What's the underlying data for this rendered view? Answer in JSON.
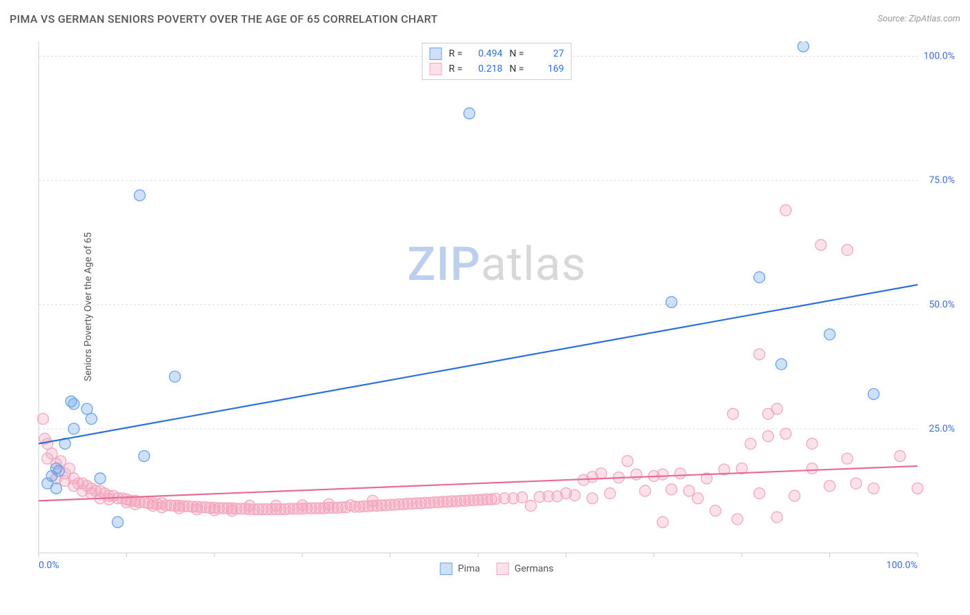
{
  "header": {
    "title": "PIMA VS GERMAN SENIORS POVERTY OVER THE AGE OF 65 CORRELATION CHART",
    "source_label": "Source: ZipAtlas.com"
  },
  "watermark": {
    "prefix": "ZIP",
    "suffix": "atlas"
  },
  "chart": {
    "type": "scatter",
    "y_axis_label": "Seniors Poverty Over the Age of 65",
    "xlim": [
      0,
      100
    ],
    "ylim": [
      0,
      103
    ],
    "x_ticks_minor_step": 10,
    "x_tick_labels": [
      {
        "pos": 0,
        "label": "0.0%"
      },
      {
        "pos": 100,
        "label": "100.0%"
      }
    ],
    "y_gridlines": [
      25,
      50,
      75,
      100
    ],
    "y_tick_labels": [
      {
        "pos": 25,
        "label": "25.0%"
      },
      {
        "pos": 50,
        "label": "50.0%"
      },
      {
        "pos": 75,
        "label": "75.0%"
      },
      {
        "pos": 100,
        "label": "100.0%"
      }
    ],
    "background_color": "#ffffff",
    "grid_color": "#dddddd",
    "axis_color": "#cccccc",
    "tick_label_color": "#3b6fd6",
    "axis_label_color": "#555555",
    "marker_radius": 8,
    "marker_fill_opacity": 0.32,
    "marker_stroke_width": 1.3,
    "trendline_width": 2.2,
    "series": [
      {
        "name": "Pima",
        "color": "#6aa3e8",
        "trendline_color": "#2a6fe0",
        "R": "0.494",
        "N": "27",
        "trendline": {
          "x1": 0,
          "y1": 22,
          "x2": 100,
          "y2": 54
        },
        "points": [
          [
            1,
            14
          ],
          [
            1.5,
            15.5
          ],
          [
            2,
            13
          ],
          [
            2,
            17
          ],
          [
            2.3,
            16.5
          ],
          [
            3,
            22
          ],
          [
            3.7,
            30.5
          ],
          [
            4,
            30
          ],
          [
            4,
            25
          ],
          [
            5.5,
            29
          ],
          [
            6,
            27
          ],
          [
            7,
            15
          ],
          [
            9,
            6.2
          ],
          [
            11.5,
            72
          ],
          [
            12,
            19.5
          ],
          [
            15.5,
            35.5
          ],
          [
            49,
            88.5
          ],
          [
            72,
            50.5
          ],
          [
            82,
            55.5
          ],
          [
            84.5,
            38
          ],
          [
            87,
            102
          ],
          [
            90,
            44
          ],
          [
            95,
            32
          ]
        ]
      },
      {
        "name": "Germans",
        "color": "#f4a6bd",
        "trendline_color": "#e86b91",
        "R": "0.218",
        "N": "169",
        "trendline": {
          "x1": 0,
          "y1": 10.5,
          "x2": 100,
          "y2": 17.5
        },
        "points": [
          [
            0.5,
            27
          ],
          [
            0.7,
            23
          ],
          [
            1,
            22
          ],
          [
            1,
            19
          ],
          [
            1.5,
            20
          ],
          [
            2,
            18
          ],
          [
            2,
            15
          ],
          [
            2.5,
            18.5
          ],
          [
            3,
            16
          ],
          [
            3,
            14.5
          ],
          [
            3.5,
            17
          ],
          [
            4,
            15
          ],
          [
            4,
            13.5
          ],
          [
            4.5,
            14
          ],
          [
            5,
            14
          ],
          [
            5,
            12.5
          ],
          [
            5.5,
            13.5
          ],
          [
            6,
            13
          ],
          [
            6,
            12
          ],
          [
            6.5,
            12.5
          ],
          [
            7,
            12.5
          ],
          [
            7,
            11
          ],
          [
            7.5,
            12
          ],
          [
            8,
            11.5
          ],
          [
            8,
            10.8
          ],
          [
            8.5,
            11.5
          ],
          [
            9,
            11
          ],
          [
            9.5,
            11
          ],
          [
            10,
            10.8
          ],
          [
            10,
            10.2
          ],
          [
            10.5,
            10.5
          ],
          [
            11,
            10.5
          ],
          [
            11,
            9.8
          ],
          [
            11.5,
            10.2
          ],
          [
            12,
            10.2
          ],
          [
            12.5,
            10
          ],
          [
            13,
            10
          ],
          [
            13,
            9.5
          ],
          [
            13.5,
            9.8
          ],
          [
            14,
            10
          ],
          [
            14,
            9.2
          ],
          [
            14.5,
            9.6
          ],
          [
            15,
            9.6
          ],
          [
            15.5,
            9.5
          ],
          [
            16,
            9.5
          ],
          [
            16,
            9
          ],
          [
            16.5,
            9.4
          ],
          [
            17,
            9.4
          ],
          [
            17.5,
            9.3
          ],
          [
            18,
            9.3
          ],
          [
            18,
            8.8
          ],
          [
            18.5,
            9.2
          ],
          [
            19,
            9.2
          ],
          [
            19.5,
            9.1
          ],
          [
            20,
            9.1
          ],
          [
            20,
            8.6
          ],
          [
            20.5,
            9
          ],
          [
            21,
            9
          ],
          [
            21.5,
            9
          ],
          [
            22,
            9
          ],
          [
            22,
            8.5
          ],
          [
            22.5,
            8.9
          ],
          [
            23,
            8.9
          ],
          [
            23.5,
            8.9
          ],
          [
            24,
            8.8
          ],
          [
            24,
            9.5
          ],
          [
            24.5,
            8.8
          ],
          [
            25,
            8.8
          ],
          [
            25.5,
            8.8
          ],
          [
            26,
            8.8
          ],
          [
            26.5,
            8.8
          ],
          [
            27,
            8.8
          ],
          [
            27,
            9.5
          ],
          [
            27.5,
            8.8
          ],
          [
            28,
            8.8
          ],
          [
            28.5,
            8.9
          ],
          [
            29,
            8.9
          ],
          [
            29.5,
            8.9
          ],
          [
            30,
            8.9
          ],
          [
            30,
            9.6
          ],
          [
            30.5,
            9
          ],
          [
            31,
            9
          ],
          [
            31.5,
            9
          ],
          [
            32,
            9
          ],
          [
            32.5,
            9
          ],
          [
            33,
            9.1
          ],
          [
            33,
            9.8
          ],
          [
            33.5,
            9.1
          ],
          [
            34,
            9.1
          ],
          [
            34.5,
            9.2
          ],
          [
            35,
            9.2
          ],
          [
            35.5,
            9.6
          ],
          [
            36,
            9.3
          ],
          [
            36.5,
            9.3
          ],
          [
            37,
            9.4
          ],
          [
            37.5,
            9.4
          ],
          [
            38,
            9.5
          ],
          [
            38,
            10.5
          ],
          [
            38.5,
            9.5
          ],
          [
            39,
            9.6
          ],
          [
            39.5,
            9.6
          ],
          [
            40,
            9.7
          ],
          [
            40.5,
            9.7
          ],
          [
            41,
            9.8
          ],
          [
            41.5,
            9.8
          ],
          [
            42,
            9.9
          ],
          [
            42.5,
            9.9
          ],
          [
            43,
            10
          ],
          [
            43.5,
            10
          ],
          [
            44,
            10.1
          ],
          [
            44.5,
            10.1
          ],
          [
            45,
            10.2
          ],
          [
            45.5,
            10.2
          ],
          [
            46,
            10.3
          ],
          [
            46.5,
            10.3
          ],
          [
            47,
            10.4
          ],
          [
            47.5,
            10.4
          ],
          [
            48,
            10.5
          ],
          [
            48.5,
            10.5
          ],
          [
            49,
            10.6
          ],
          [
            49.5,
            10.6
          ],
          [
            50,
            10.7
          ],
          [
            50.5,
            10.7
          ],
          [
            51,
            10.8
          ],
          [
            51.5,
            10.8
          ],
          [
            52,
            10.9
          ],
          [
            53,
            11
          ],
          [
            54,
            11
          ],
          [
            55,
            11.2
          ],
          [
            56,
            9.5
          ],
          [
            57,
            11.3
          ],
          [
            58,
            11.4
          ],
          [
            59,
            11.4
          ],
          [
            60,
            12
          ],
          [
            61,
            11.6
          ],
          [
            62,
            14.7
          ],
          [
            63,
            11
          ],
          [
            63,
            15.3
          ],
          [
            64,
            16
          ],
          [
            65,
            12
          ],
          [
            66,
            15.2
          ],
          [
            67,
            18.5
          ],
          [
            68,
            15.8
          ],
          [
            69,
            12.5
          ],
          [
            70,
            15.5
          ],
          [
            71,
            6.2
          ],
          [
            71,
            15.8
          ],
          [
            72,
            12.8
          ],
          [
            73,
            16
          ],
          [
            74,
            12.5
          ],
          [
            75,
            11
          ],
          [
            76,
            15
          ],
          [
            77,
            8.5
          ],
          [
            78,
            16.8
          ],
          [
            79,
            28
          ],
          [
            79.5,
            6.8
          ],
          [
            80,
            17
          ],
          [
            81,
            22
          ],
          [
            82,
            40
          ],
          [
            82,
            12
          ],
          [
            83,
            23.5
          ],
          [
            83,
            28
          ],
          [
            84,
            29
          ],
          [
            84,
            7.2
          ],
          [
            85,
            24
          ],
          [
            85,
            69
          ],
          [
            86,
            11.5
          ],
          [
            88,
            22
          ],
          [
            88,
            17
          ],
          [
            89,
            62
          ],
          [
            90,
            13.5
          ],
          [
            92,
            19
          ],
          [
            92,
            61
          ],
          [
            93,
            14
          ],
          [
            95,
            13
          ],
          [
            98,
            19.5
          ],
          [
            100,
            13
          ]
        ]
      }
    ]
  },
  "legend_bottom": {
    "items": [
      {
        "label": "Pima",
        "color": "#6aa3e8"
      },
      {
        "label": "Germans",
        "color": "#f4a6bd"
      }
    ]
  }
}
